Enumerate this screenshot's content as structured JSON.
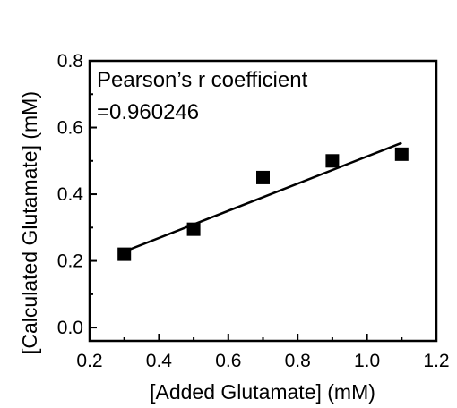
{
  "chart_data": {
    "type": "scatter",
    "xlabel": "[Added Glutamate] (mM)",
    "ylabel": "[Calculated Glutamate] (mM)",
    "xlim": [
      0.2,
      1.2
    ],
    "ylim": [
      -0.04,
      0.8
    ],
    "x_ticks": [
      0.2,
      0.4,
      0.6,
      0.8,
      1.0,
      1.2
    ],
    "x_tick_labels": [
      "0.2",
      "0.4",
      "0.6",
      "0.8",
      "1.0",
      "1.2"
    ],
    "y_ticks": [
      0.0,
      0.2,
      0.4,
      0.6,
      0.8
    ],
    "y_tick_labels": [
      "0.0",
      "0.2",
      "0.4",
      "0.6",
      "0.8"
    ],
    "grid": false,
    "legend": false,
    "series": [
      {
        "marker": "square",
        "color": "#000000",
        "points": [
          {
            "x": 0.3,
            "y": 0.22
          },
          {
            "x": 0.5,
            "y": 0.295
          },
          {
            "x": 0.7,
            "y": 0.45
          },
          {
            "x": 0.9,
            "y": 0.5
          },
          {
            "x": 1.1,
            "y": 0.52
          }
        ]
      }
    ],
    "fit_line": {
      "type": "linear",
      "color": "#000000",
      "x": [
        0.3,
        1.1
      ],
      "y": [
        0.228,
        0.554
      ]
    },
    "annotation": {
      "line1": "Pearson’s r coefficient",
      "line2": "=0.960246",
      "position": "top-left"
    }
  }
}
